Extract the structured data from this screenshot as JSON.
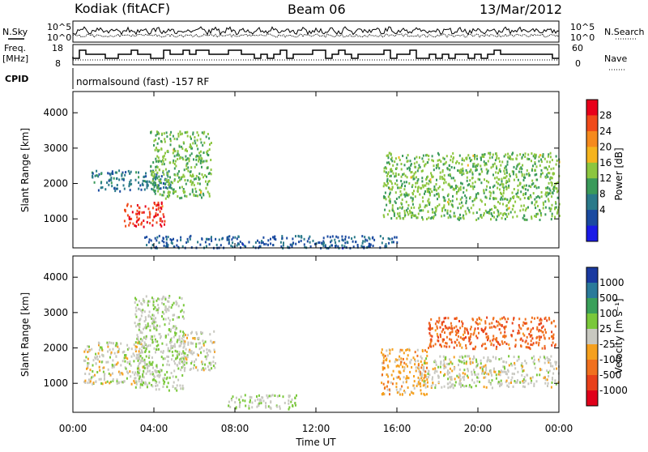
{
  "header": {
    "radar": "Kodiak (fitACF)",
    "beam": "Beam 06",
    "date": "13/Mar/2012"
  },
  "top_panels": {
    "nsky_label": "N.Sky",
    "nsearch_label": "N.Search",
    "count_ticks": [
      "10^5",
      "10^0"
    ],
    "freq_label_1": "Freq.",
    "freq_label_2": "[MHz]",
    "freq_ticks": [
      "18",
      "8"
    ],
    "nave_label": "Nave",
    "nave_ticks": [
      "60",
      "0"
    ],
    "cpid_label": "CPID",
    "cpid_text": "normalsound (fast) -157 RF"
  },
  "axes": {
    "ylabel": "Slant Range [km]",
    "xlabel": "Time UT",
    "y_ticks": [
      "1000",
      "2000",
      "3000",
      "4000"
    ],
    "x_ticks": [
      "00:00",
      "04:00",
      "08:00",
      "12:00",
      "16:00",
      "20:00",
      "00:00"
    ]
  },
  "power_colorbar": {
    "label": "Power [dB]",
    "ticks": [
      "28",
      "24",
      "20",
      "16",
      "12",
      "8",
      "4"
    ],
    "colors": [
      "#e8001a",
      "#f04a1a",
      "#f58a1e",
      "#f5b41e",
      "#8cc63f",
      "#3a9a5a",
      "#2a7a8a",
      "#1a4aa0",
      "#1a1ae6"
    ]
  },
  "velocity_colorbar": {
    "label": "Velocity [m s⁻¹]",
    "ticks": [
      "1000",
      "500",
      "100",
      "25",
      "-25",
      "-100",
      "-500",
      "-1000"
    ],
    "colors": [
      "#1a3aa0",
      "#2a7a9a",
      "#3aa05a",
      "#7ac83a",
      "#c8c8c0",
      "#f5a01e",
      "#f0701e",
      "#e8401a",
      "#e0001a"
    ]
  },
  "chart_data": {
    "type": "heatmap",
    "title": "Kodiak (fitACF) Beam 06 13/Mar/2012",
    "xlabel": "Time UT",
    "ylabel": "Slant Range [km]",
    "xlim": [
      0,
      24
    ],
    "ylim": [
      180,
      4600
    ],
    "panels": [
      {
        "name": "Power [dB]",
        "clim": [
          0,
          30
        ],
        "echo_regions": [
          {
            "t_start": 0.9,
            "t_end": 4.8,
            "range_start": 1800,
            "range_end": 2400,
            "value": 8
          },
          {
            "t_start": 2.5,
            "t_end": 4.5,
            "range_start": 800,
            "range_end": 1500,
            "value": 26
          },
          {
            "t_start": 3.8,
            "t_end": 6.8,
            "range_start": 1600,
            "range_end": 3500,
            "value": 14
          },
          {
            "t_start": 3.5,
            "t_end": 16.0,
            "range_start": 200,
            "range_end": 550,
            "value": 6
          },
          {
            "t_start": 15.3,
            "t_end": 24.0,
            "range_start": 1000,
            "range_end": 2900,
            "value": 14
          }
        ]
      },
      {
        "name": "Velocity [m s⁻¹]",
        "clim": [
          -1000,
          1000
        ],
        "echo_regions": [
          {
            "t_start": 0.5,
            "t_end": 3.5,
            "range_start": 1000,
            "range_end": 2200,
            "value": 0
          },
          {
            "t_start": 3.0,
            "t_end": 5.5,
            "range_start": 800,
            "range_end": 3500,
            "value": 80
          },
          {
            "t_start": 5.0,
            "t_end": 7.0,
            "range_start": 1400,
            "range_end": 2500,
            "value": 0
          },
          {
            "t_start": 7.5,
            "t_end": 11.0,
            "range_start": 300,
            "range_end": 700,
            "value": 100
          },
          {
            "t_start": 15.2,
            "t_end": 17.5,
            "range_start": 700,
            "range_end": 2000,
            "value": -200
          },
          {
            "t_start": 17.5,
            "t_end": 23.8,
            "range_start": 2000,
            "range_end": 2900,
            "value": -500
          },
          {
            "t_start": 17.0,
            "t_end": 24.0,
            "range_start": 900,
            "range_end": 1800,
            "value": 0
          }
        ]
      }
    ]
  }
}
